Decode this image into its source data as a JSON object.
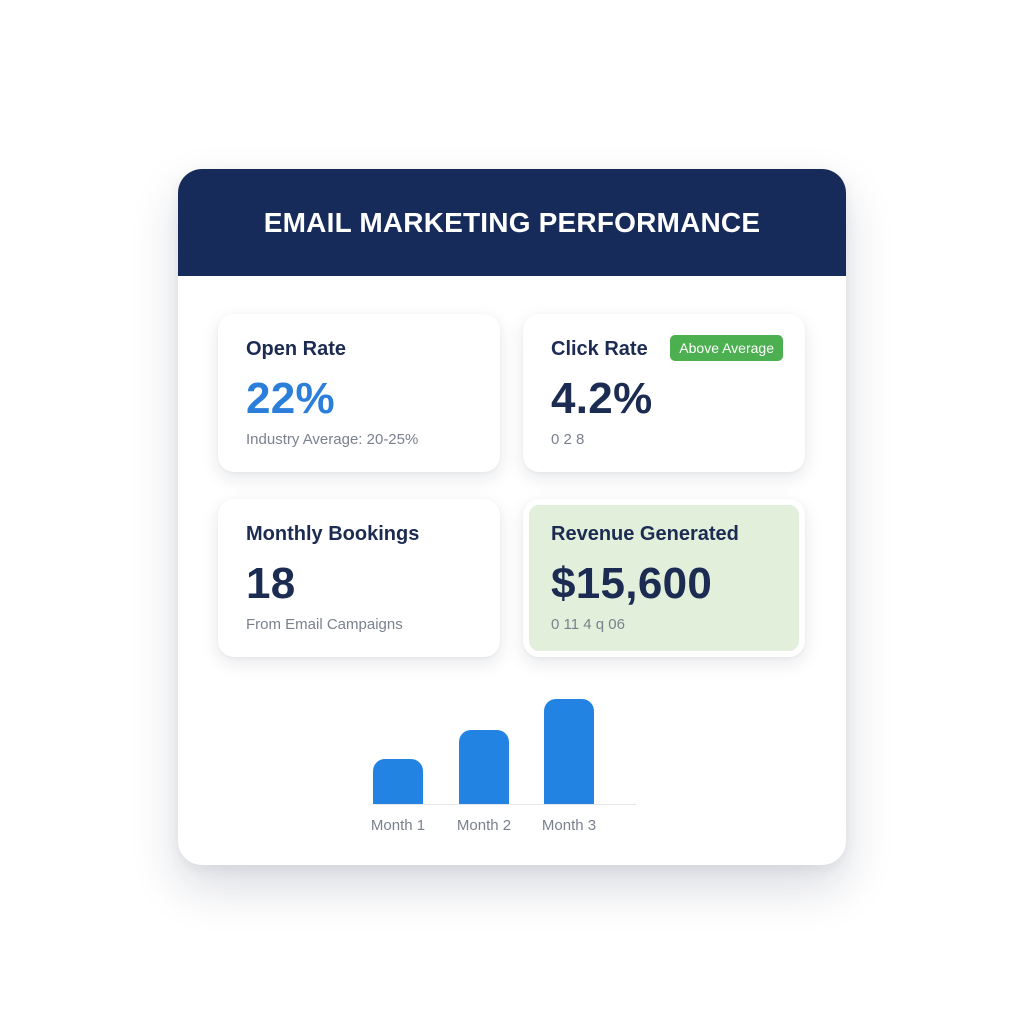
{
  "header": {
    "title": "EMAIL MARKETING PERFORMANCE"
  },
  "cards": {
    "open_rate": {
      "label": "Open Rate",
      "value": "22%",
      "sub": "Industry Average: 20-25%"
    },
    "click_rate": {
      "label": "Click Rate",
      "value": "4.2%",
      "sub": "0 2 8",
      "badge": "Above Average"
    },
    "bookings": {
      "label": "Monthly Bookings",
      "value": "18",
      "sub": "From Email Campaigns"
    },
    "revenue": {
      "label": "Revenue Generated",
      "value": "$15,600",
      "sub": "0 11 4 q 06"
    }
  },
  "colors": {
    "header_bg": "#172b5a",
    "accent_blue": "#2b7fdb",
    "bar_blue": "#2383e2",
    "badge_green": "#4caf50",
    "revenue_bg": "#e1efdb",
    "text_dark": "#1b2b52",
    "text_muted": "#7a818e"
  },
  "chart_data": {
    "type": "bar",
    "categories": [
      "Month 1",
      "Month 2",
      "Month 3"
    ],
    "values": [
      44,
      72,
      102
    ],
    "ylim": [
      0,
      110
    ],
    "grid": false
  }
}
